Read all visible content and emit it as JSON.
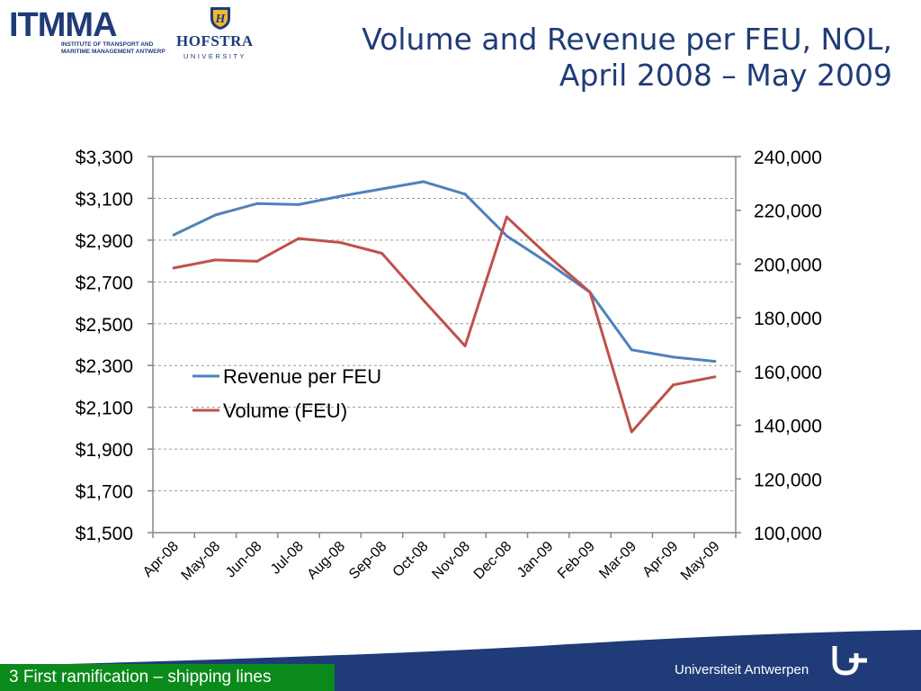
{
  "header": {
    "itmma_logo_word": "ITMMA",
    "itmma_logo_sub_1": "INSTITUTE OF TRANSPORT AND",
    "itmma_logo_sub_2": "MARITIME MANAGEMENT ANTWERP",
    "hofstra_name": "HOFSTRA",
    "hofstra_sub": "UNIVERSITY",
    "title_line1": "Volume and Revenue per FEU, NOL,",
    "title_line2": "April 2008 – May 2009"
  },
  "footer": {
    "section_label": "3 First ramification – shipping lines",
    "university": "Universiteit Antwerpen"
  },
  "colors": {
    "title": "#1f3c78",
    "revenue_series": "#4f81bd",
    "volume_series": "#c0504d",
    "footer_bar": "#1f3c78",
    "footer_label_bg": "#0b8a1c"
  },
  "chart_data": {
    "type": "line",
    "categories": [
      "Apr-08",
      "May-08",
      "Jun-08",
      "Jul-08",
      "Aug-08",
      "Sep-08",
      "Oct-08",
      "Nov-08",
      "Dec-08",
      "Jan-09",
      "Feb-09",
      "Mar-09",
      "Apr-09",
      "May-09"
    ],
    "series": [
      {
        "name": "Revenue per FEU",
        "axis": "left",
        "color": "#4f81bd",
        "values": [
          2925,
          3020,
          3075,
          3070,
          3110,
          3145,
          3180,
          3120,
          2920,
          2790,
          2650,
          2375,
          2340,
          2320
        ]
      },
      {
        "name": "Volume (FEU)",
        "axis": "right",
        "color": "#c0504d",
        "values": [
          198500,
          201500,
          201000,
          209500,
          208000,
          204000,
          186500,
          169500,
          217500,
          203000,
          189500,
          137500,
          155000,
          158000
        ]
      }
    ],
    "left_axis": {
      "min": 1500,
      "max": 3300,
      "step": 200,
      "tick_labels": [
        "$1,500",
        "$1,700",
        "$1,900",
        "$2,100",
        "$2,300",
        "$2,500",
        "$2,700",
        "$2,900",
        "$3,100",
        "$3,300"
      ]
    },
    "right_axis": {
      "min": 100000,
      "max": 240000,
      "step": 20000,
      "tick_labels": [
        "100,000",
        "120,000",
        "140,000",
        "160,000",
        "180,000",
        "200,000",
        "220,000",
        "240,000"
      ]
    },
    "grid": true,
    "legend_placement": "left-middle"
  }
}
